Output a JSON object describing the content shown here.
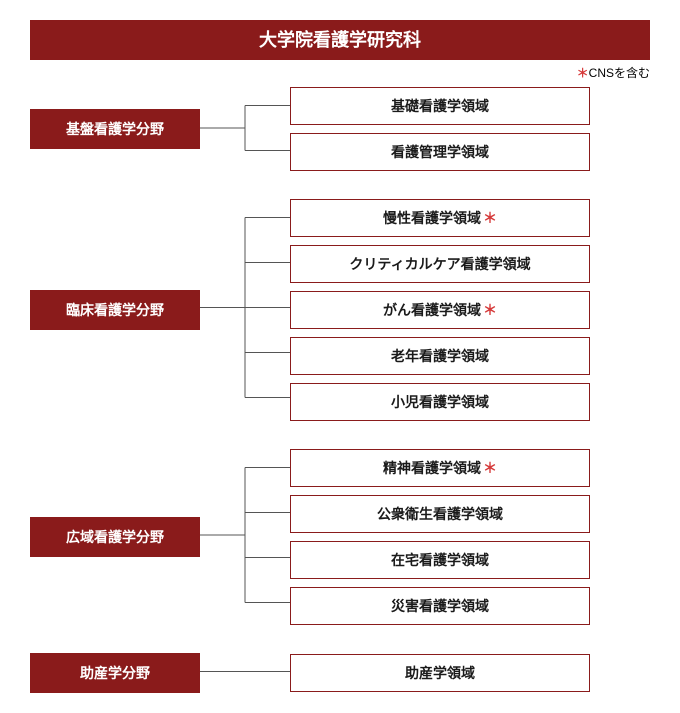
{
  "colors": {
    "primary": "#8a1b1b",
    "asterisk": "#d63a3a",
    "text": "#1a1a1a",
    "border": "#8a1b1b",
    "connector": "#555555",
    "background": "#ffffff"
  },
  "sizes": {
    "title_fontsize": 18,
    "field_fontsize": 14,
    "area_fontsize": 14,
    "note_fontsize": 12,
    "field_box_width": 170,
    "area_box_width": 300,
    "connector_width": 90
  },
  "title": "大学院看護学研究科",
  "note": {
    "asterisk": "＊",
    "text": "CNSを含む"
  },
  "groups": [
    {
      "field": "基盤看護学分野",
      "areas": [
        {
          "label": "基礎看護学領域",
          "star": false
        },
        {
          "label": "看護管理学領域",
          "star": false
        }
      ]
    },
    {
      "field": "臨床看護学分野",
      "areas": [
        {
          "label": "慢性看護学領域",
          "star": true
        },
        {
          "label": "クリティカルケア看護学領域",
          "star": false
        },
        {
          "label": "がん看護学領域",
          "star": true
        },
        {
          "label": "老年看護学領域",
          "star": false
        },
        {
          "label": "小児看護学領域",
          "star": false
        }
      ]
    },
    {
      "field": "広域看護学分野",
      "areas": [
        {
          "label": "精神看護学領域",
          "star": true
        },
        {
          "label": "公衆衛生看護学領域",
          "star": false
        },
        {
          "label": "在宅看護学領域",
          "star": false
        },
        {
          "label": "災害看護学領域",
          "star": false
        }
      ]
    },
    {
      "field": "助産学分野",
      "areas": [
        {
          "label": "助産学領域",
          "star": false
        }
      ]
    }
  ]
}
